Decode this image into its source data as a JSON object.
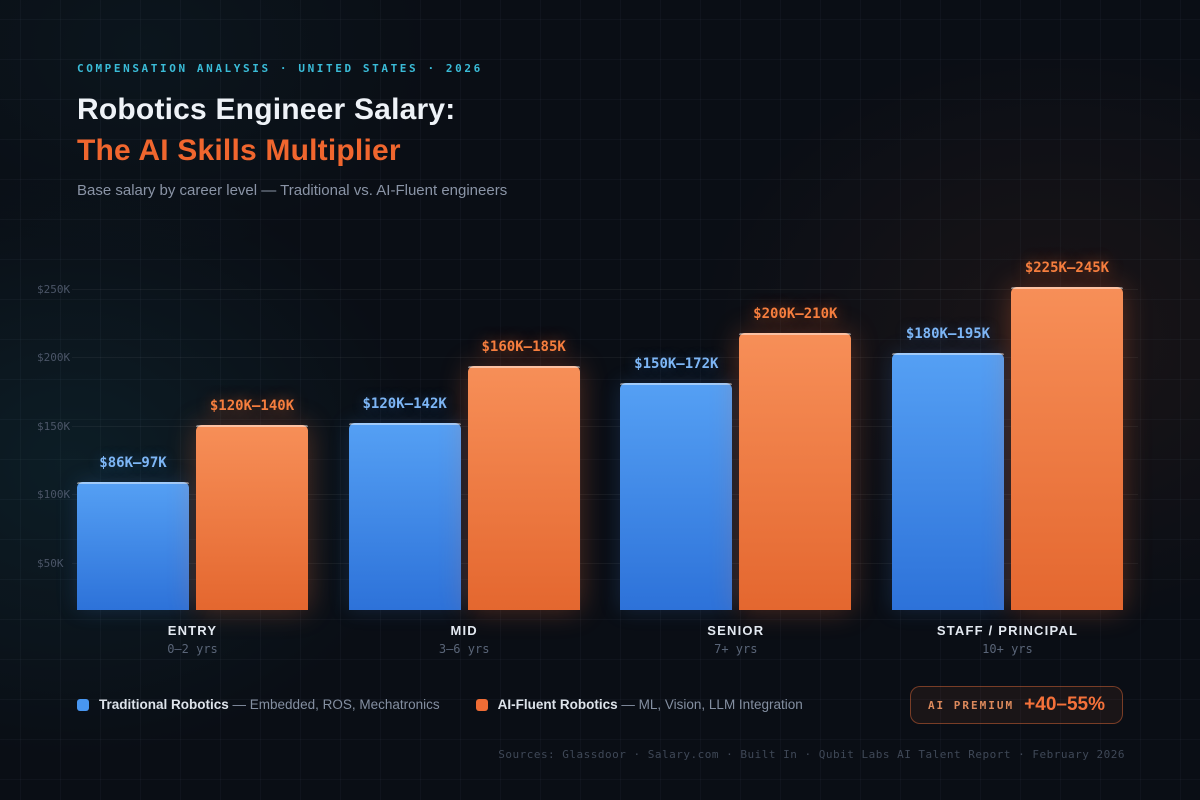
{
  "header": {
    "eyebrow": "COMPENSATION ANALYSIS · UNITED STATES · 2026",
    "title_line1": "Robotics Engineer Salary:",
    "title_line2": "The AI Skills Multiplier",
    "subtitle": "Base salary by career level — Traditional vs. AI-Fluent engineers"
  },
  "chart_data": {
    "type": "bar",
    "title": "Robotics Engineer Salary: The AI Skills Multiplier",
    "categories": [
      "ENTRY",
      "MID",
      "SENIOR",
      "STAFF / PRINCIPAL"
    ],
    "category_sublabels": [
      "0–2 yrs",
      "3–6 yrs",
      "7+ yrs",
      "10+ yrs"
    ],
    "series": [
      {
        "name": "Traditional Robotics",
        "legend_detail": "— Embedded, ROS, Mechatronics",
        "color": "#4896f0",
        "values_min_k": [
          86,
          120,
          150,
          180
        ],
        "values_max_k": [
          97,
          142,
          172,
          195
        ],
        "labels": [
          "$86K–97K",
          "$120K–142K",
          "$150K–172K",
          "$180K–195K"
        ]
      },
      {
        "name": "AI-Fluent Robotics",
        "legend_detail": "— ML, Vision, LLM Integration",
        "color": "#ee6c35",
        "values_min_k": [
          120,
          160,
          200,
          225
        ],
        "values_max_k": [
          140,
          185,
          210,
          245
        ],
        "labels": [
          "$120K–140K",
          "$160K–185K",
          "$200K–210K",
          "$225K–245K"
        ]
      }
    ],
    "y_axis": {
      "unit": "USD thousands",
      "ticks_k": [
        50,
        100,
        150,
        200,
        250
      ],
      "tick_labels": [
        "$50K",
        "$100K",
        "$150K",
        "$200K",
        "$250K"
      ],
      "range_k": [
        0,
        260
      ]
    },
    "grid": true,
    "legend_position": "bottom"
  },
  "badge": {
    "label": "AI PREMIUM",
    "value": "+40–55%"
  },
  "footer": {
    "sources": "Sources: Glassdoor · Salary.com · Built In · Qubit Labs AI Talent Report · February 2026"
  },
  "colors": {
    "background": "#0a0e15",
    "accent_cyan": "#3abcd8",
    "accent_orange": "#f0662e",
    "traditional_blue": "#4896f0",
    "ai_fluent_orange": "#ee6c35"
  }
}
